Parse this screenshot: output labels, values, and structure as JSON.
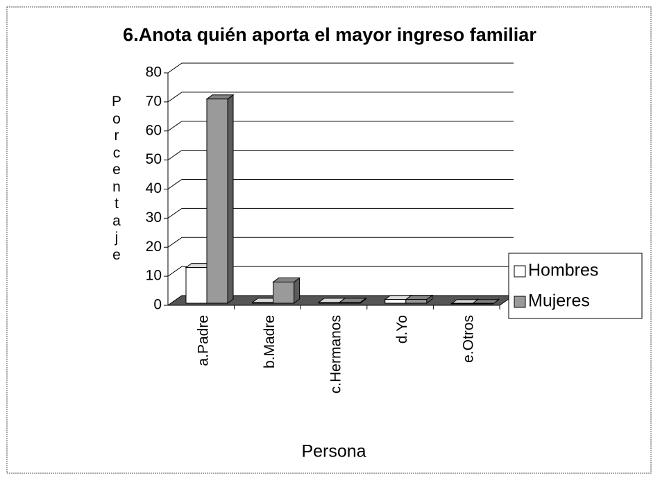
{
  "chart_data": {
    "type": "bar3d",
    "title": "6.Anota quién aporta el mayor ingreso familiar",
    "x_label": "Persona",
    "y_label": "Porcentaje",
    "categories": [
      "a.Padre",
      "b.Madre",
      "c.Hermanos",
      "d.Yo",
      "e.Otros"
    ],
    "series": [
      {
        "name": "Hombres",
        "color": "#ffffff",
        "values": [
          13,
          1,
          1,
          2,
          0.5
        ]
      },
      {
        "name": "Mujeres",
        "color": "#9a9a9a",
        "values": [
          71,
          8,
          1,
          2,
          0.5
        ]
      }
    ],
    "ylim": [
      0,
      80
    ],
    "yticks": [
      0,
      10,
      20,
      30,
      40,
      50,
      60,
      70,
      80
    ],
    "grid": true,
    "legend": "right"
  }
}
